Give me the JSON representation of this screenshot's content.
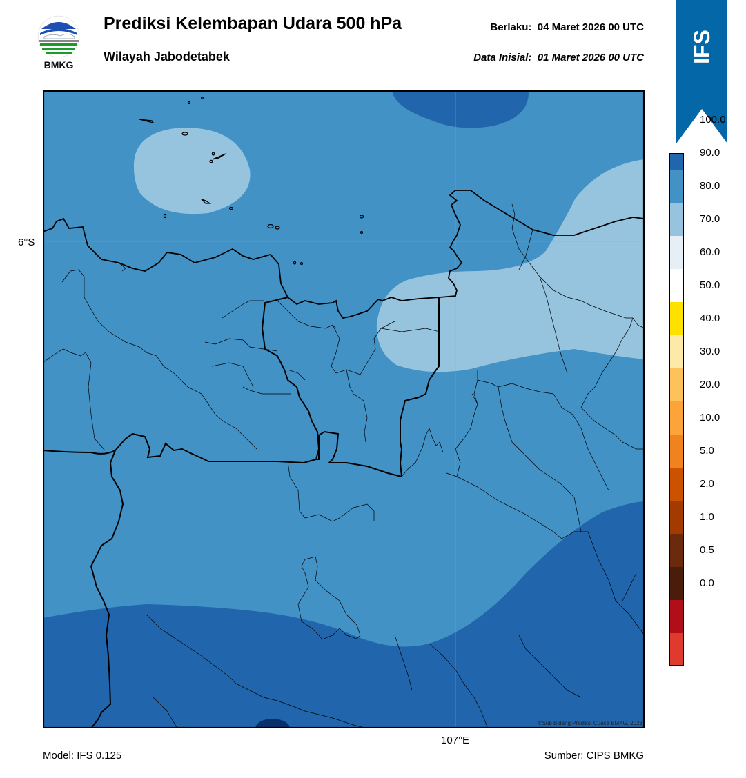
{
  "header": {
    "logo_text": "BMKG",
    "title": "Prediksi Kelembapan Udara 500 hPa",
    "subtitle": "Wilayah Jabodetabek",
    "valid_label": "Berlaku:",
    "valid_value": "04 Maret 2026 00 UTC",
    "init_label": "Data Inisial:",
    "init_value": "01 Maret 2026 00 UTC",
    "ribbon_text": "IFS"
  },
  "map": {
    "latitude_labels": [
      "6°S"
    ],
    "longitude_labels": [
      "107°E"
    ],
    "credit": "©Sub Bidang Prediksi Cuaca BMKG, 2023",
    "fill_colors": {
      "very_light": "#96c4de",
      "light": "#4292c6",
      "medium": "#2166ac",
      "dark": "#08306b"
    }
  },
  "colorbar": {
    "tick_labels": [
      "100.0",
      "90.0",
      "80.0",
      "70.0",
      "60.0",
      "50.0",
      "40.0",
      "30.0",
      "20.0",
      "10.0",
      "5.0",
      "2.0",
      "1.0",
      "0.5",
      "0.0"
    ],
    "colors_top_to_bottom": [
      "#2a0a4f",
      "#08306b",
      "#2166ac",
      "#4292c6",
      "#96c4de",
      "#e6eef6",
      "#ffffff",
      "#ffe100",
      "#fde9a8",
      "#fdc35a",
      "#fca43a",
      "#f0831e",
      "#cc5200",
      "#a33b00",
      "#6b2a0c",
      "#4a1d0a",
      "#b00f1a",
      "#e03a2e"
    ]
  },
  "footer": {
    "model": "Model: IFS 0.125",
    "source": "Sumber: CIPS BMKG"
  }
}
